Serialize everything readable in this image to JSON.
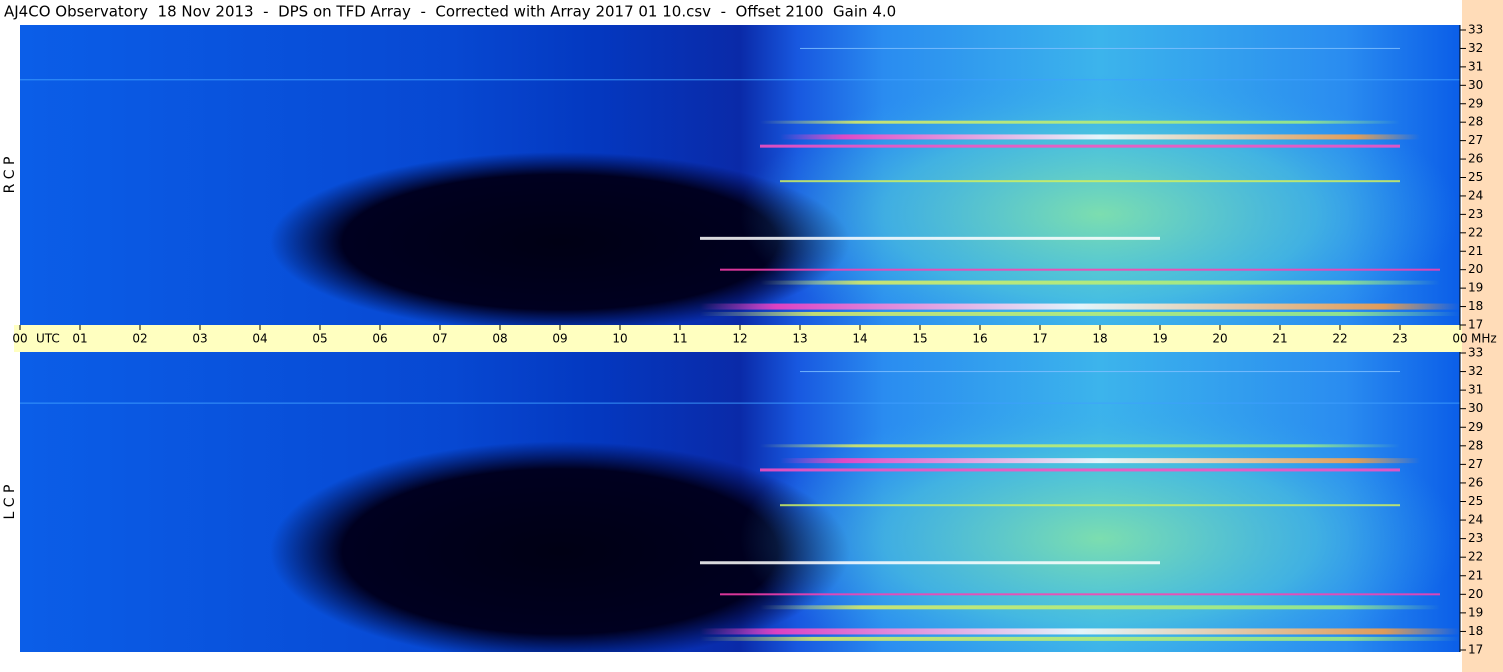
{
  "chart_data": {
    "type": "spectrogram",
    "title": "AJ4CO Observatory  18 Nov 2013  -  DPS on TFD Array  -  Corrected with Array 2017 01 10.csv  -  Offset 2100  Gain 4.0",
    "x_label": "UTC",
    "y_label": "MHz",
    "panels": [
      "R C P",
      "L C P"
    ],
    "categories": [
      "00",
      "01",
      "02",
      "03",
      "04",
      "05",
      "06",
      "07",
      "08",
      "09",
      "10",
      "11",
      "12",
      "13",
      "14",
      "15",
      "16",
      "17",
      "18",
      "19",
      "20",
      "21",
      "22",
      "23",
      "00"
    ],
    "ylim": [
      17,
      33
    ],
    "yticks": [
      17,
      18,
      19,
      20,
      21,
      22,
      23,
      24,
      25,
      26,
      27,
      28,
      29,
      30,
      31,
      32,
      33
    ]
  }
}
